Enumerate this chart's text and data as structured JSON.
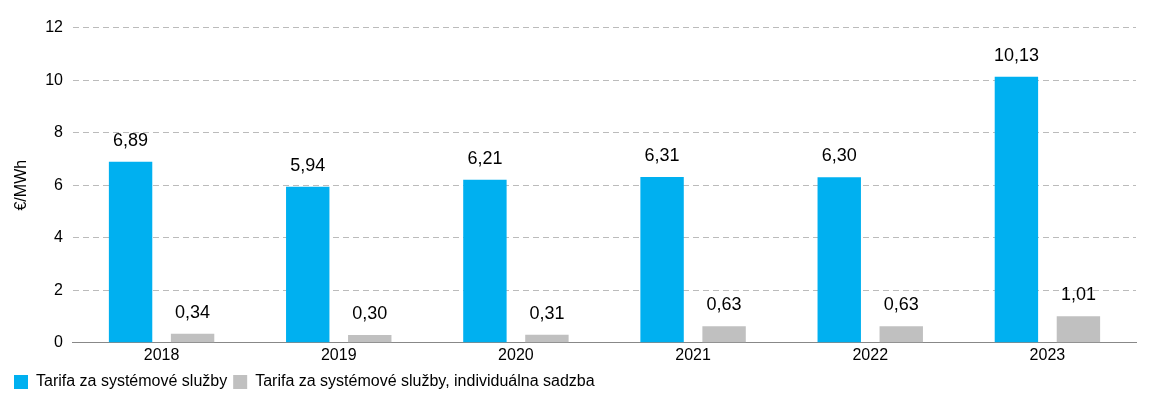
{
  "chart_data": {
    "type": "bar",
    "ylabel": "€/MWh",
    "categories": [
      "2018",
      "2019",
      "2020",
      "2021",
      "2022",
      "2023"
    ],
    "series": [
      {
        "name": "Tarifa za systémové služby",
        "color": "#00b0f0",
        "values": [
          6.89,
          5.94,
          6.21,
          6.31,
          6.3,
          10.13
        ],
        "value_labels": [
          "6,89",
          "5,94",
          "6,21",
          "6,31",
          "6,30",
          "10,13"
        ]
      },
      {
        "name": "Tarifa za systémové služby, individuálna sadzba",
        "color": "#c0c0c0",
        "values": [
          0.34,
          0.3,
          0.31,
          0.63,
          0.63,
          1.01
        ],
        "value_labels": [
          "0,34",
          "0,30",
          "0,31",
          "0,63",
          "0,63",
          "1,01"
        ]
      }
    ],
    "ylim": [
      0,
      12
    ],
    "yticks": [
      0,
      2,
      4,
      6,
      8,
      10,
      12
    ],
    "grid": "y",
    "legend": "bottom left"
  }
}
